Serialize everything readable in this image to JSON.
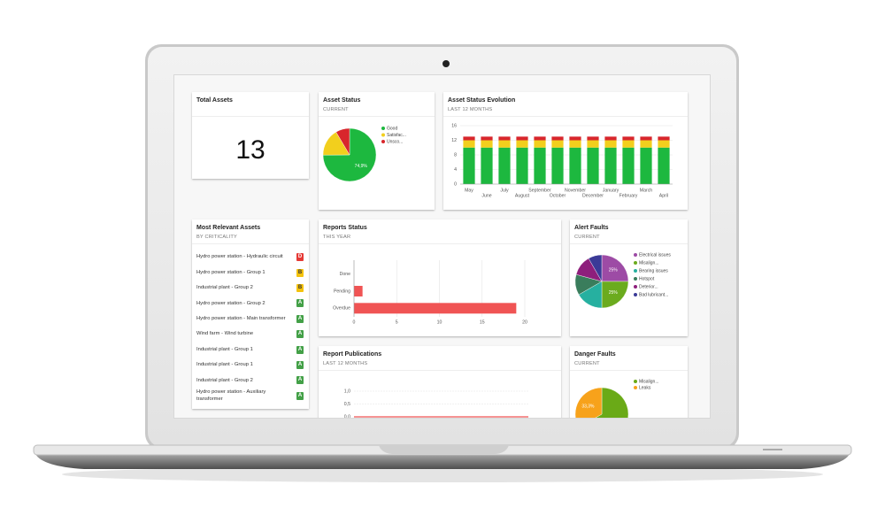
{
  "total_assets": {
    "title": "Total Assets",
    "value": 13
  },
  "most_relevant_assets": {
    "title": "Most Relevant Assets",
    "subtitle": "BY CRITICALITY",
    "grade_colors": {
      "A": "#43a047",
      "B": "#f4c20d",
      "D": "#e53935"
    },
    "rows": [
      {
        "name": "Hydro power station - Hydraulic circuit",
        "grade": "D"
      },
      {
        "name": "Hydro power station - Group 1",
        "grade": "B"
      },
      {
        "name": "Industrial plant - Group 2",
        "grade": "B"
      },
      {
        "name": "Hydro power station - Group 2",
        "grade": "A"
      },
      {
        "name": "Hydro power station - Main transformer",
        "grade": "A"
      },
      {
        "name": "Wind farm - Wind turbine",
        "grade": "A"
      },
      {
        "name": "Industrial plant - Group 1",
        "grade": "A"
      },
      {
        "name": "Industrial plant - Group 1",
        "grade": "A"
      },
      {
        "name": "Industrial plant - Group 2",
        "grade": "A"
      },
      {
        "name": "Hydro power station - Auxiliary transformer",
        "grade": "A"
      }
    ]
  },
  "chart_data": [
    {
      "type": "pie",
      "title": "Asset Status",
      "subtitle": "CURRENT",
      "categories": [
        "Good",
        "Satisfac...",
        "Unsco..."
      ],
      "values": [
        74.9,
        16.6,
        8.5
      ],
      "value_labels": [
        "74,9%",
        null,
        null
      ],
      "colors": [
        "#1db83f",
        "#f2cf1d",
        "#d8262c"
      ]
    },
    {
      "type": "bar",
      "title": "Asset Status Evolution",
      "subtitle": "LAST 12 MONTHS",
      "stacked": true,
      "categories": [
        "May",
        "June",
        "July",
        "August",
        "September",
        "October",
        "November",
        "December",
        "January",
        "February",
        "March",
        "April"
      ],
      "series": [
        {
          "color": "#1db83f",
          "values": [
            10,
            10,
            10,
            10,
            10,
            10,
            10,
            10,
            10,
            10,
            10,
            10
          ]
        },
        {
          "color": "#f2cf1d",
          "values": [
            2,
            2,
            2,
            2,
            2,
            2,
            2,
            2,
            2,
            2,
            2,
            2
          ]
        },
        {
          "color": "#d8262c",
          "values": [
            1,
            1,
            1,
            1,
            1,
            1,
            1,
            1,
            1,
            1,
            1,
            1
          ]
        }
      ],
      "ylim": [
        0,
        16
      ],
      "yticks": [
        0,
        4,
        8,
        12,
        16
      ],
      "grid": true
    },
    {
      "type": "hbar",
      "title": "Reports Status",
      "subtitle": "THIS YEAR",
      "categories": [
        "Done",
        "Pending",
        "Overdue"
      ],
      "values": [
        0,
        1,
        19
      ],
      "color": "#f05454",
      "xlim": [
        0,
        20
      ],
      "xticks": [
        0,
        5,
        10,
        15,
        20
      ],
      "grid": true
    },
    {
      "type": "pie",
      "title": "Alert Faults",
      "subtitle": "CURRENT",
      "categories": [
        "Electrical issues",
        "Misalign...",
        "Bearing issues",
        "Hotspot",
        "Deterior...",
        "Bad lubricant..."
      ],
      "values": [
        25,
        25,
        16.7,
        12.5,
        12.5,
        8.3
      ],
      "value_labels": [
        "25%",
        "25%",
        null,
        null,
        null,
        null
      ],
      "colors": [
        "#9d4ba5",
        "#6bab1e",
        "#26b0a0",
        "#3a7d5c",
        "#8e1f7c",
        "#3b3a97"
      ]
    },
    {
      "type": "line",
      "title": "Report Publications",
      "subtitle": "LAST 12 MONTHS",
      "values": [
        0,
        0,
        0,
        0,
        0,
        0,
        0,
        0,
        0,
        0,
        0,
        0
      ],
      "color": "#f05454",
      "ylim": [
        0,
        1
      ],
      "yticks": [
        {
          "value": 1,
          "label": "1,0"
        },
        {
          "value": 0.5,
          "label": "0,5"
        },
        {
          "value": 0,
          "label": "0,0"
        }
      ],
      "grid": true
    },
    {
      "type": "pie",
      "title": "Danger Faults",
      "subtitle": "CURRENT",
      "categories": [
        "Misalign...",
        "Leaks"
      ],
      "values": [
        66.7,
        33.3
      ],
      "value_labels": [
        "66,7%",
        "33,3%"
      ],
      "colors": [
        "#6aaa17",
        "#f7a21b"
      ]
    }
  ]
}
